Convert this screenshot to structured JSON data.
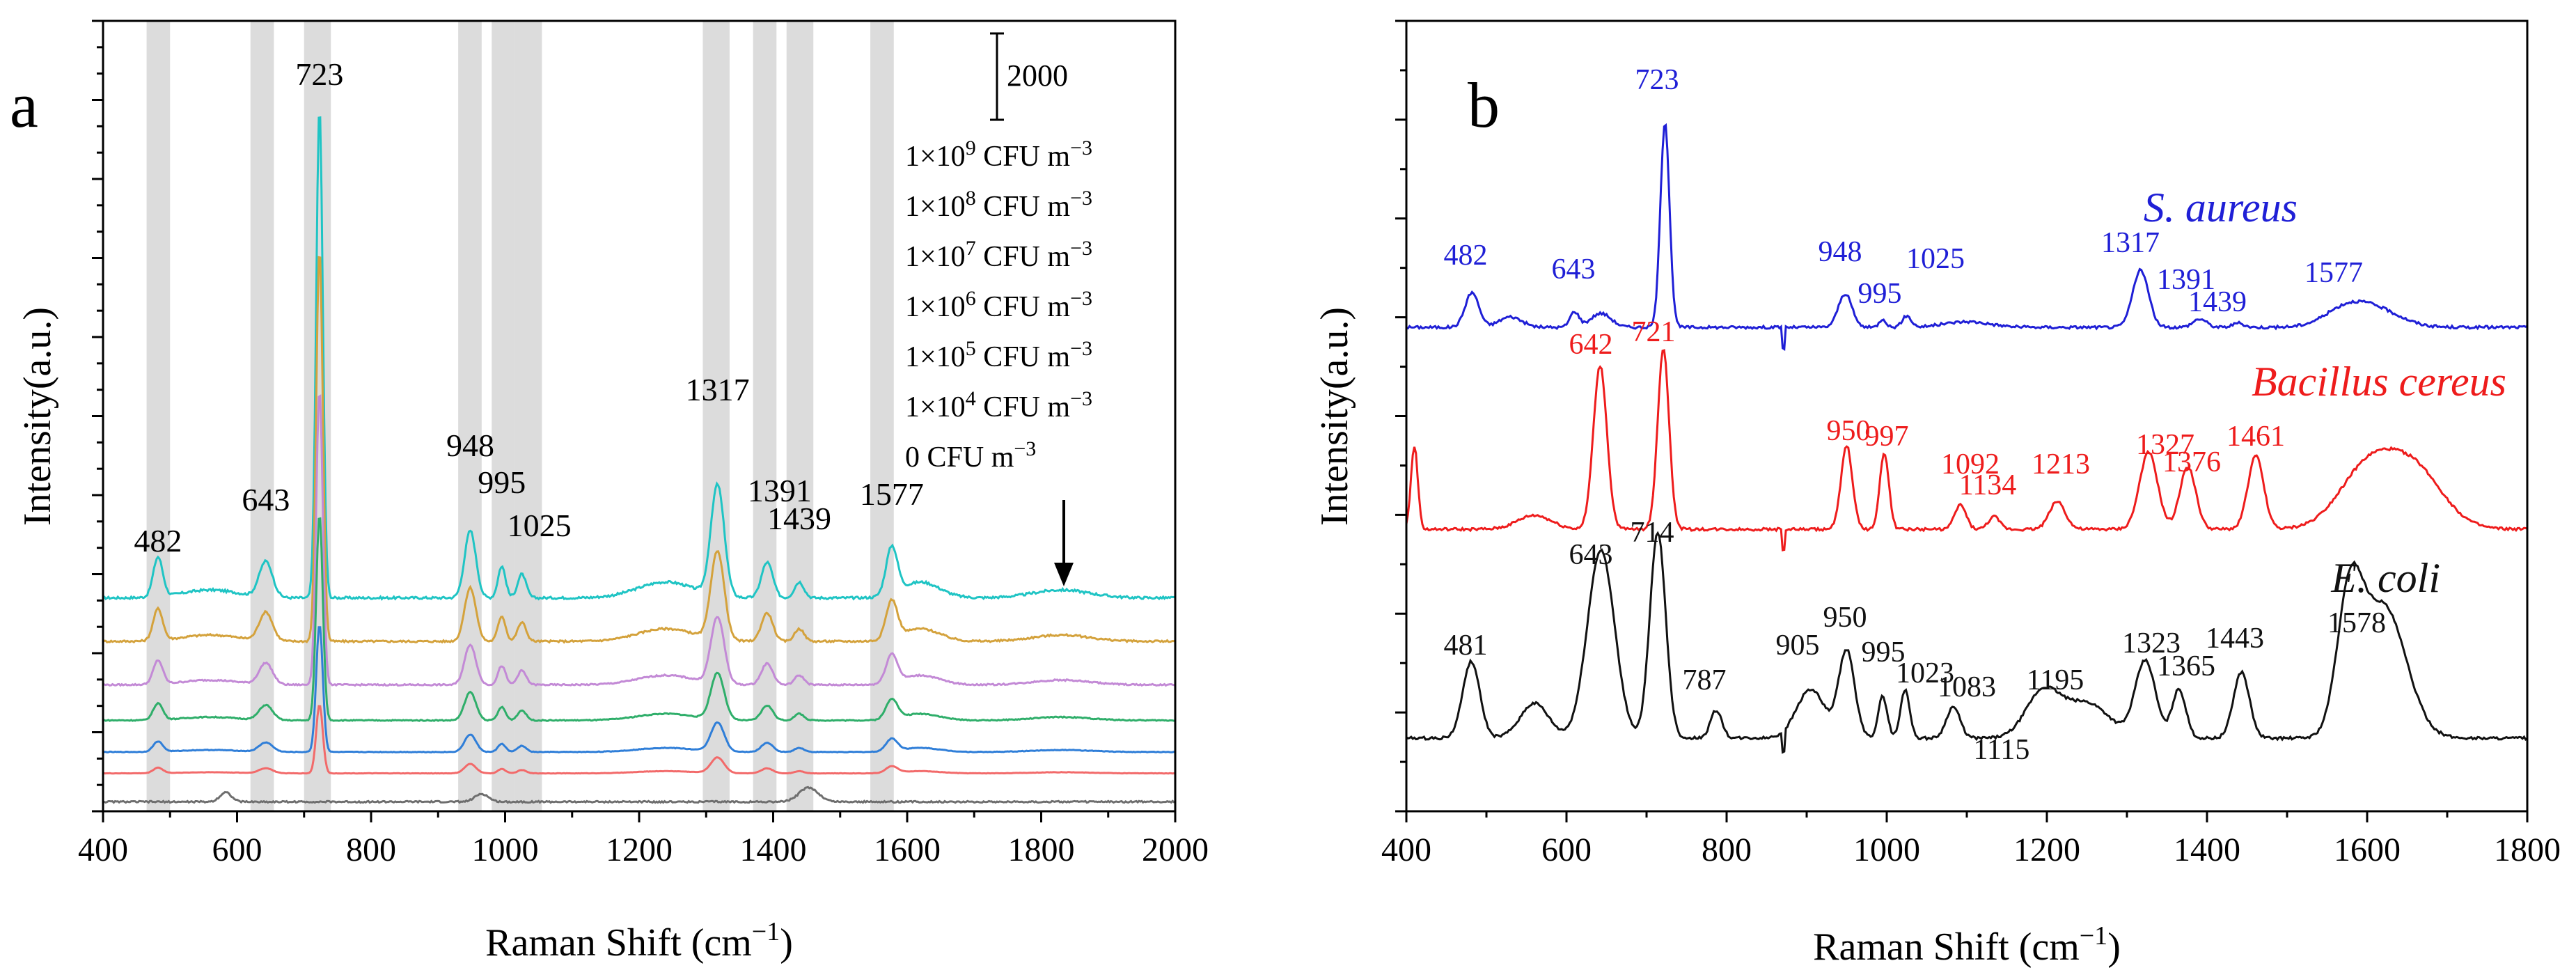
{
  "chart_data": [
    {
      "panel": "a",
      "type": "line",
      "xlabel": "Raman Shift (cm",
      "xlabel_sup": "−1",
      "xlabel_end": ")",
      "ylabel": "Intensity(a.u.)",
      "xlim": [
        400,
        2000
      ],
      "xticks": [
        "400",
        "600",
        "800",
        "1000",
        "1200",
        "1400",
        "1600",
        "1800",
        "2000"
      ],
      "scale_bar_label": "2000",
      "highlight_bands": [
        [
          465,
          500
        ],
        [
          620,
          655
        ],
        [
          700,
          740
        ],
        [
          930,
          965
        ],
        [
          980,
          1015
        ],
        [
          1015,
          1055
        ],
        [
          1295,
          1335
        ],
        [
          1370,
          1405
        ],
        [
          1420,
          1460
        ],
        [
          1545,
          1580
        ]
      ],
      "peak_labels": [
        {
          "x": 482,
          "text": "482"
        },
        {
          "x": 643,
          "text": "643"
        },
        {
          "x": 723,
          "text": "723"
        },
        {
          "x": 948,
          "text": "948"
        },
        {
          "x": 995,
          "text": "995"
        },
        {
          "x": 1025,
          "text": "1025"
        },
        {
          "x": 1317,
          "text": "1317"
        },
        {
          "x": 1391,
          "text": "1391"
        },
        {
          "x": 1439,
          "text": "1439"
        },
        {
          "x": 1577,
          "text": "1577"
        }
      ],
      "concentration_labels": [
        {
          "base": "1×10",
          "exp": "9",
          "unit": " CFU m",
          "unit_exp": "−3"
        },
        {
          "base": "1×10",
          "exp": "8",
          "unit": " CFU m",
          "unit_exp": "−3"
        },
        {
          "base": "1×10",
          "exp": "7",
          "unit": " CFU m",
          "unit_exp": "−3"
        },
        {
          "base": "1×10",
          "exp": "6",
          "unit": " CFU m",
          "unit_exp": "−3"
        },
        {
          "base": "1×10",
          "exp": "5",
          "unit": " CFU m",
          "unit_exp": "−3"
        },
        {
          "base": "1×10",
          "exp": "4",
          "unit": " CFU m",
          "unit_exp": "−3"
        },
        {
          "base": "0",
          "exp": "",
          "unit": " CFU m",
          "unit_exp": "−3"
        }
      ],
      "series": [
        {
          "name": "1×10⁹ CFU m⁻³",
          "color": "#1fc4c4",
          "offset": 0.27,
          "scale": 1.0
        },
        {
          "name": "1×10⁸ CFU m⁻³",
          "color": "#d4a23c",
          "offset": 0.215,
          "scale": 0.8
        },
        {
          "name": "1×10⁷ CFU m⁻³",
          "color": "#c38ad6",
          "offset": 0.16,
          "scale": 0.6
        },
        {
          "name": "1×10⁶ CFU m⁻³",
          "color": "#2fae6a",
          "offset": 0.115,
          "scale": 0.42
        },
        {
          "name": "1×10⁵ CFU m⁻³",
          "color": "#2f7ed8",
          "offset": 0.075,
          "scale": 0.26
        },
        {
          "name": "1×10⁴ CFU m⁻³",
          "color": "#f26a6a",
          "offset": 0.048,
          "scale": 0.14
        },
        {
          "name": "0 CFU m⁻³",
          "color": "#6e6e6e",
          "offset": 0.012,
          "scale": 0.0
        }
      ]
    },
    {
      "panel": "b",
      "type": "line",
      "xlabel": "Raman Shift (cm",
      "xlabel_sup": "−1",
      "xlabel_end": ")",
      "ylabel": "Intensity(a.u.)",
      "xlim": [
        400,
        1800
      ],
      "xticks": [
        "400",
        "600",
        "800",
        "1000",
        "1200",
        "1400",
        "1600",
        "1800"
      ],
      "series": [
        {
          "name": "S. aureus",
          "color": "#1f1fd6",
          "peak_labels": [
            "482",
            "643",
            "723",
            "948",
            "995",
            "1025",
            "1317",
            "1391",
            "1439",
            "1577"
          ]
        },
        {
          "name": "Bacillus cereus",
          "color": "#ee1c1c",
          "peak_labels": [
            "642",
            "721",
            "950",
            "997",
            "1092",
            "1134",
            "1213",
            "1327",
            "1376",
            "1461"
          ]
        },
        {
          "name": "E. coli",
          "color": "#111111",
          "peak_labels": [
            "481",
            "643",
            "714",
            "787",
            "905",
            "950",
            "995",
            "1023",
            "1083",
            "1115",
            "1195",
            "1323",
            "1365",
            "1443",
            "1578"
          ]
        }
      ]
    }
  ],
  "panel_letters": {
    "a": "a",
    "b": "b"
  }
}
